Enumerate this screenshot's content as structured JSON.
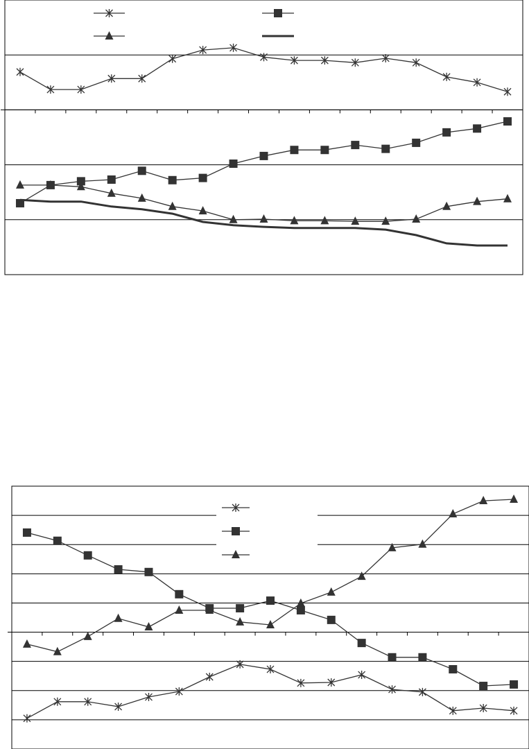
{
  "chart_data": [
    {
      "type": "line",
      "categories": [
        null,
        null,
        null,
        null,
        null,
        null,
        null,
        null,
        null,
        null,
        null,
        null,
        null,
        null,
        null,
        null,
        null
      ],
      "ylim": [
        0,
        5
      ],
      "yticks": [
        1,
        2,
        3,
        4
      ],
      "grid": true,
      "x_axis_crosses": 3,
      "legend": "top",
      "series": [
        {
          "color": "#333333",
          "marker": "asterisk",
          "values": [
            3.69,
            3.37,
            3.37,
            3.57,
            3.57,
            3.93,
            4.09,
            4.13,
            3.96,
            3.9,
            3.9,
            3.86,
            3.94,
            3.86,
            3.6,
            3.5,
            3.33
          ]
        },
        {
          "color": "#333333",
          "marker": "square",
          "values": [
            1.3,
            1.63,
            1.7,
            1.73,
            1.89,
            1.72,
            1.76,
            2.02,
            2.16,
            2.27,
            2.27,
            2.36,
            2.29,
            2.4,
            2.59,
            2.66,
            2.79
          ]
        },
        {
          "color": "#333333",
          "marker": "triangle",
          "values": [
            1.63,
            1.63,
            1.6,
            1.48,
            1.39,
            1.24,
            1.16,
            1.0,
            1.01,
            0.98,
            0.98,
            0.97,
            0.97,
            1.01,
            1.24,
            1.33,
            1.38
          ]
        },
        {
          "color": "#333333",
          "marker": "none",
          "values": [
            1.36,
            1.33,
            1.33,
            1.24,
            1.19,
            1.11,
            0.96,
            0.9,
            0.87,
            0.85,
            0.85,
            0.85,
            0.82,
            0.72,
            0.57,
            0.53,
            0.53
          ]
        }
      ]
    },
    {
      "type": "line",
      "categories": [
        null,
        null,
        null,
        null,
        null,
        null,
        null,
        null,
        null,
        null,
        null,
        null,
        null,
        null,
        null,
        null,
        null
      ],
      "ylim": [
        0,
        9
      ],
      "yticks": [
        1,
        2,
        3,
        4,
        5,
        6,
        7,
        8
      ],
      "grid": true,
      "x_axis_crosses": 4,
      "legend": "center",
      "series": [
        {
          "color": "#333333",
          "marker": "asterisk",
          "values": [
            1.05,
            1.62,
            1.62,
            1.45,
            1.78,
            1.97,
            2.47,
            2.9,
            2.73,
            2.26,
            2.28,
            2.54,
            2.04,
            1.95,
            1.31,
            1.4,
            1.31
          ]
        },
        {
          "color": "#333333",
          "marker": "square",
          "values": [
            7.41,
            7.13,
            6.63,
            6.15,
            6.06,
            5.3,
            4.82,
            4.82,
            5.08,
            4.75,
            4.42,
            3.63,
            3.14,
            3.14,
            2.73,
            2.16,
            2.21
          ]
        },
        {
          "color": "#333333",
          "marker": "triangle",
          "values": [
            3.59,
            3.33,
            3.85,
            4.47,
            4.18,
            4.75,
            4.75,
            4.35,
            4.25,
            4.99,
            5.37,
            5.91,
            6.89,
            7.01,
            8.05,
            8.5,
            8.55
          ]
        }
      ]
    }
  ]
}
